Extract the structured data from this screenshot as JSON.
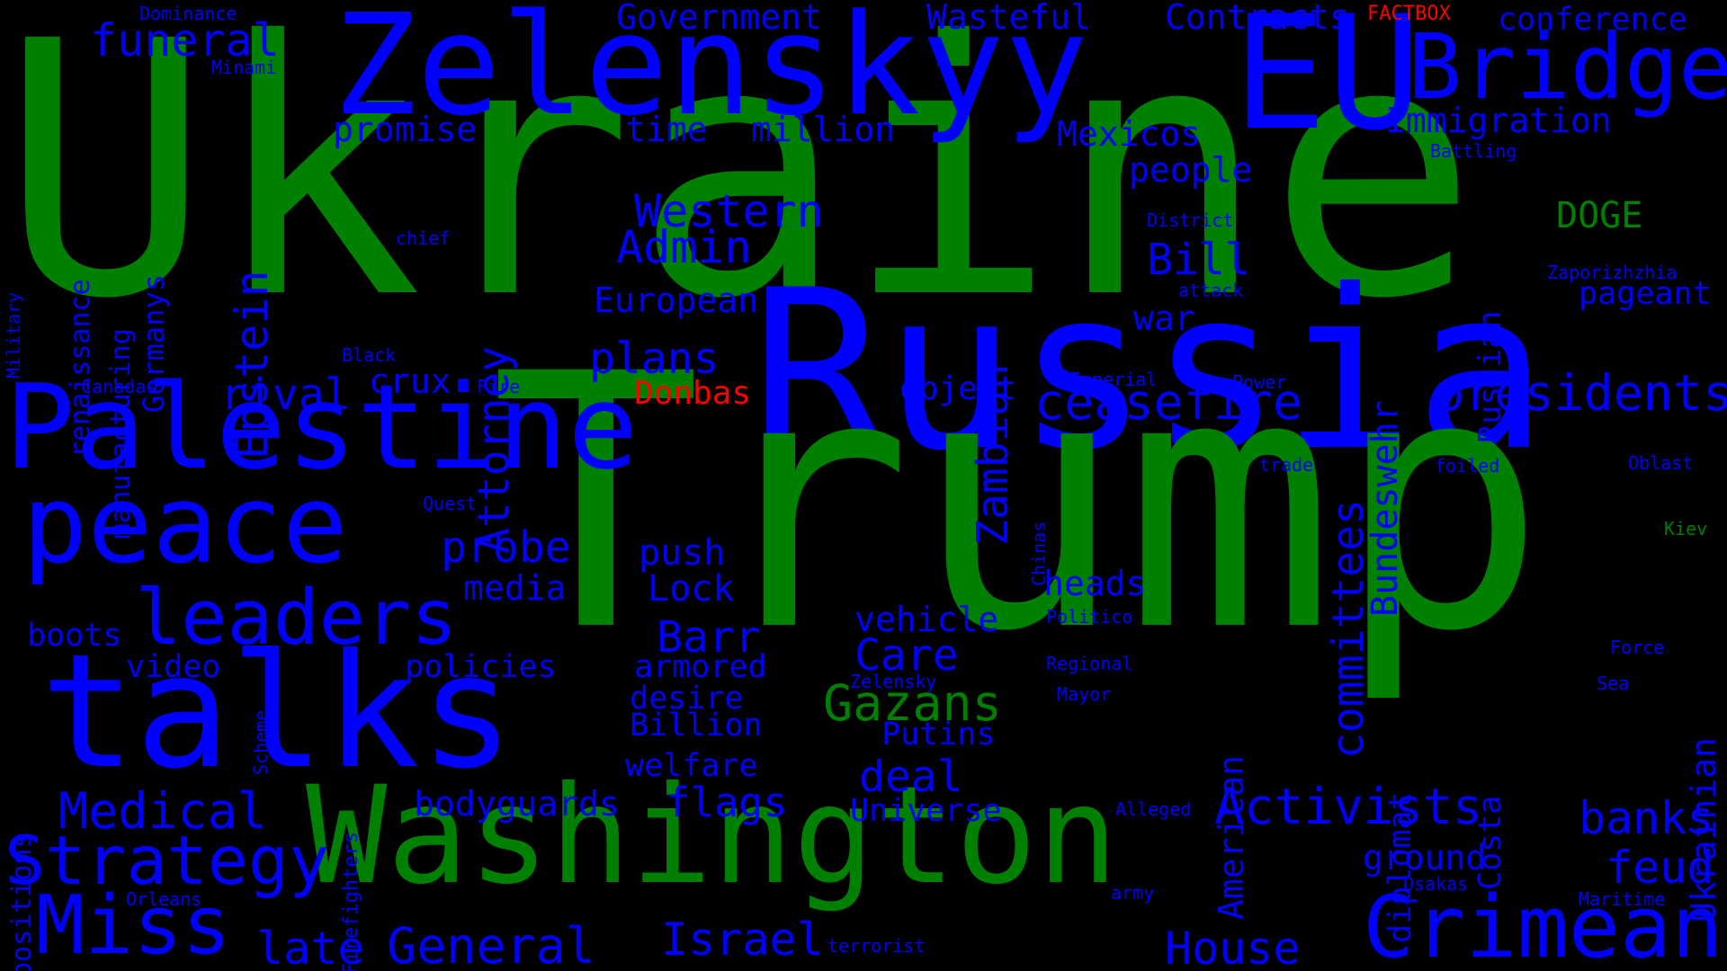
{
  "wordcloud": {
    "background": "#000000",
    "colors": {
      "green": "#008000",
      "blue": "#0000ff",
      "red": "#ff0000"
    },
    "words": [
      {
        "text": "Ukraine",
        "color": "green"
      },
      {
        "text": "Russia",
        "color": "blue"
      },
      {
        "text": "Trump",
        "color": "green"
      },
      {
        "text": "Zelenskyy",
        "color": "blue"
      },
      {
        "text": "EU",
        "color": "blue"
      },
      {
        "text": "Bridge",
        "color": "blue"
      },
      {
        "text": "Palestine",
        "color": "blue"
      },
      {
        "text": "peace",
        "color": "blue"
      },
      {
        "text": "talks",
        "color": "blue"
      },
      {
        "text": "Washington",
        "color": "green"
      },
      {
        "text": "leaders",
        "color": "blue"
      },
      {
        "text": "Miss",
        "color": "blue"
      },
      {
        "text": "Crimean",
        "color": "blue"
      },
      {
        "text": "Strategy",
        "color": "blue"
      },
      {
        "text": "presidents",
        "color": "blue"
      },
      {
        "text": "Medical",
        "color": "blue"
      },
      {
        "text": "General",
        "color": "blue"
      },
      {
        "text": "late",
        "color": "blue"
      },
      {
        "text": "Israel",
        "color": "blue"
      },
      {
        "text": "House",
        "color": "blue"
      },
      {
        "text": "Activists",
        "color": "blue"
      },
      {
        "text": "banks",
        "color": "blue"
      },
      {
        "text": "feud",
        "color": "blue"
      },
      {
        "text": "Gazans",
        "color": "green"
      },
      {
        "text": "ceasefire",
        "color": "blue"
      },
      {
        "text": "Western",
        "color": "blue"
      },
      {
        "text": "Admin",
        "color": "blue"
      },
      {
        "text": "Attorney",
        "color": "blue"
      },
      {
        "text": "Epstein",
        "color": "blue"
      },
      {
        "text": "funeral",
        "color": "blue"
      },
      {
        "text": "Government",
        "color": "blue"
      },
      {
        "text": "Wasteful",
        "color": "blue"
      },
      {
        "text": "Contracts",
        "color": "blue"
      },
      {
        "text": "conference",
        "color": "blue"
      },
      {
        "text": "Immigration",
        "color": "blue"
      },
      {
        "text": "Mexicos",
        "color": "blue"
      },
      {
        "text": "people",
        "color": "blue"
      },
      {
        "text": "promise",
        "color": "blue"
      },
      {
        "text": "time",
        "color": "blue"
      },
      {
        "text": "million",
        "color": "blue"
      },
      {
        "text": "DOGE",
        "color": "green"
      },
      {
        "text": "European",
        "color": "blue"
      },
      {
        "text": "plans",
        "color": "blue"
      },
      {
        "text": "Bill",
        "color": "blue"
      },
      {
        "text": "war",
        "color": "blue"
      },
      {
        "text": "pageant",
        "color": "blue"
      },
      {
        "text": "rival",
        "color": "blue"
      },
      {
        "text": "crux",
        "color": "blue"
      },
      {
        "text": "Donbas",
        "color": "red"
      },
      {
        "text": "object",
        "color": "blue"
      },
      {
        "text": "probe",
        "color": "blue"
      },
      {
        "text": "media",
        "color": "blue"
      },
      {
        "text": "push",
        "color": "blue"
      },
      {
        "text": "Lock",
        "color": "blue"
      },
      {
        "text": "heads",
        "color": "blue"
      },
      {
        "text": "vehicle",
        "color": "blue"
      },
      {
        "text": "Care",
        "color": "blue"
      },
      {
        "text": "Barr",
        "color": "blue"
      },
      {
        "text": "boots",
        "color": "blue"
      },
      {
        "text": "video",
        "color": "blue"
      },
      {
        "text": "policies",
        "color": "blue"
      },
      {
        "text": "armored",
        "color": "blue"
      },
      {
        "text": "desire",
        "color": "blue"
      },
      {
        "text": "Billion",
        "color": "blue"
      },
      {
        "text": "Putins",
        "color": "blue"
      },
      {
        "text": "welfare",
        "color": "blue"
      },
      {
        "text": "deal",
        "color": "blue"
      },
      {
        "text": "bodyguards",
        "color": "blue"
      },
      {
        "text": "flags",
        "color": "blue"
      },
      {
        "text": "Universe",
        "color": "blue"
      },
      {
        "text": "ground",
        "color": "blue"
      },
      {
        "text": "committees",
        "color": "blue"
      },
      {
        "text": "Zambian",
        "color": "blue"
      },
      {
        "text": "Bundeswehr",
        "color": "blue"
      },
      {
        "text": "Russian",
        "color": "blue"
      },
      {
        "text": "American",
        "color": "blue"
      },
      {
        "text": "diplomat",
        "color": "blue"
      },
      {
        "text": "Costa",
        "color": "blue"
      },
      {
        "text": "Ukrainian",
        "color": "blue"
      },
      {
        "text": "renaissance",
        "color": "blue"
      },
      {
        "text": "manufacturing",
        "color": "blue"
      },
      {
        "text": "Germanys",
        "color": "blue"
      },
      {
        "text": "positions",
        "color": "blue"
      },
      {
        "text": "Firefighters",
        "color": "blue"
      },
      {
        "text": "Scheme",
        "color": "blue"
      },
      {
        "text": "Military",
        "color": "blue"
      },
      {
        "text": "Chinas",
        "color": "blue"
      },
      {
        "text": "FACTBOX",
        "color": "red"
      },
      {
        "text": "Dominance",
        "color": "blue"
      },
      {
        "text": "Minami",
        "color": "blue"
      },
      {
        "text": "chief",
        "color": "blue"
      },
      {
        "text": "Black",
        "color": "blue"
      },
      {
        "text": "Canadas",
        "color": "blue"
      },
      {
        "text": "Fire",
        "color": "blue"
      },
      {
        "text": "Quest",
        "color": "blue"
      },
      {
        "text": "District",
        "color": "blue"
      },
      {
        "text": "attack",
        "color": "blue"
      },
      {
        "text": "Imperial",
        "color": "blue"
      },
      {
        "text": "Power",
        "color": "blue"
      },
      {
        "text": "Battling",
        "color": "blue"
      },
      {
        "text": "Zaporizhzhia",
        "color": "blue"
      },
      {
        "text": "trade",
        "color": "blue"
      },
      {
        "text": "foiled",
        "color": "blue"
      },
      {
        "text": "Oblast",
        "color": "blue"
      },
      {
        "text": "Kiev",
        "color": "green"
      },
      {
        "text": "Politico",
        "color": "blue"
      },
      {
        "text": "Regional",
        "color": "blue"
      },
      {
        "text": "Zelensky",
        "color": "blue"
      },
      {
        "text": "Mayor",
        "color": "blue"
      },
      {
        "text": "Force",
        "color": "blue"
      },
      {
        "text": "Sea",
        "color": "blue"
      },
      {
        "text": "Alleged",
        "color": "blue"
      },
      {
        "text": "army",
        "color": "blue"
      },
      {
        "text": "Osakas",
        "color": "blue"
      },
      {
        "text": "Maritime",
        "color": "blue"
      },
      {
        "text": "Orleans",
        "color": "blue"
      },
      {
        "text": "terrorist",
        "color": "blue"
      }
    ]
  }
}
